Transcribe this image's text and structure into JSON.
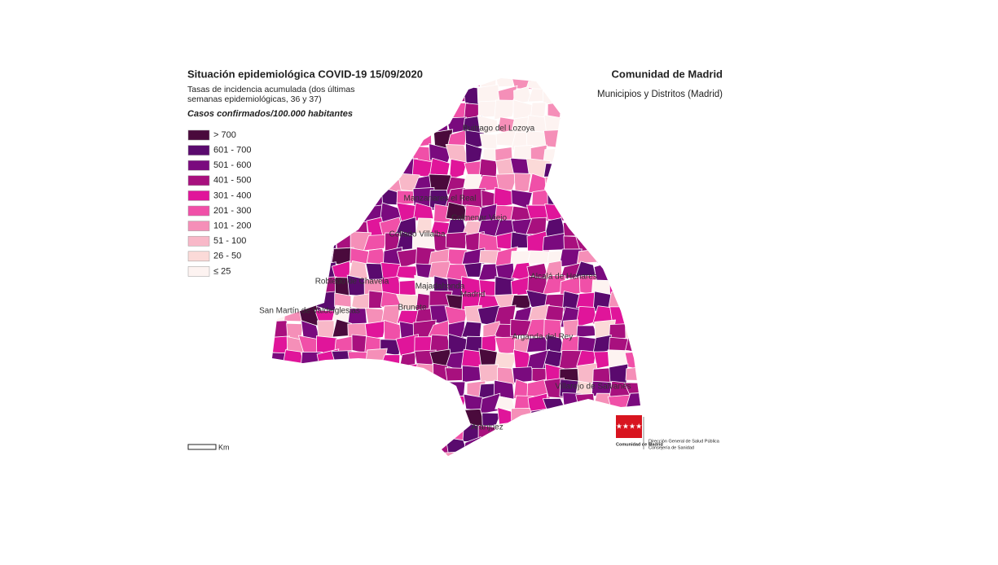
{
  "header": {
    "title": "Situación epidemiológica COVID-19  15/09/2020",
    "subtitle_line1": "Tasas de incidencia acumulada (dos últimas",
    "subtitle_line2": "semanas epidemiológicas, 36 y 37)",
    "units": "Casos confirmados/100.000 habitantes",
    "region": "Comunidad de Madrid",
    "scope": "Municipios y Distritos (Madrid)"
  },
  "legend": [
    {
      "label": "> 700",
      "color": "#4a0a3c"
    },
    {
      "label": "601 - 700",
      "color": "#5a0a6e"
    },
    {
      "label": "501 - 600",
      "color": "#7a0a7e"
    },
    {
      "label": "401 - 500",
      "color": "#a8107e"
    },
    {
      "label": "301 - 400",
      "color": "#e0159a"
    },
    {
      "label": "201 - 300",
      "color": "#f050a8"
    },
    {
      "label": "101 - 200",
      "color": "#f58fb8"
    },
    {
      "label": "51 - 100",
      "color": "#f8b8c8"
    },
    {
      "label": "26 - 50",
      "color": "#fbdad8"
    },
    {
      "label": "≤ 25",
      "color": "#fdf3f1"
    }
  ],
  "places": [
    "Buitrago del Lozoya",
    "Manzanares el Real",
    "Colmenar Viejo",
    "Collado Villalba",
    "Robledo de Chavela",
    "Majadahonda",
    "Madrid",
    "Alcalá de Henares",
    "Brunete",
    "San Martín de Valdeiglesias",
    "Arganda del Rey",
    "Villarejo de Salvanés",
    "Aranjuez"
  ],
  "scale_unit": "Km",
  "logo": {
    "name": "Comunidad de Madrid",
    "line1": "Dirección General de Salud Pública",
    "line2": "Consejería de Sanidad"
  }
}
